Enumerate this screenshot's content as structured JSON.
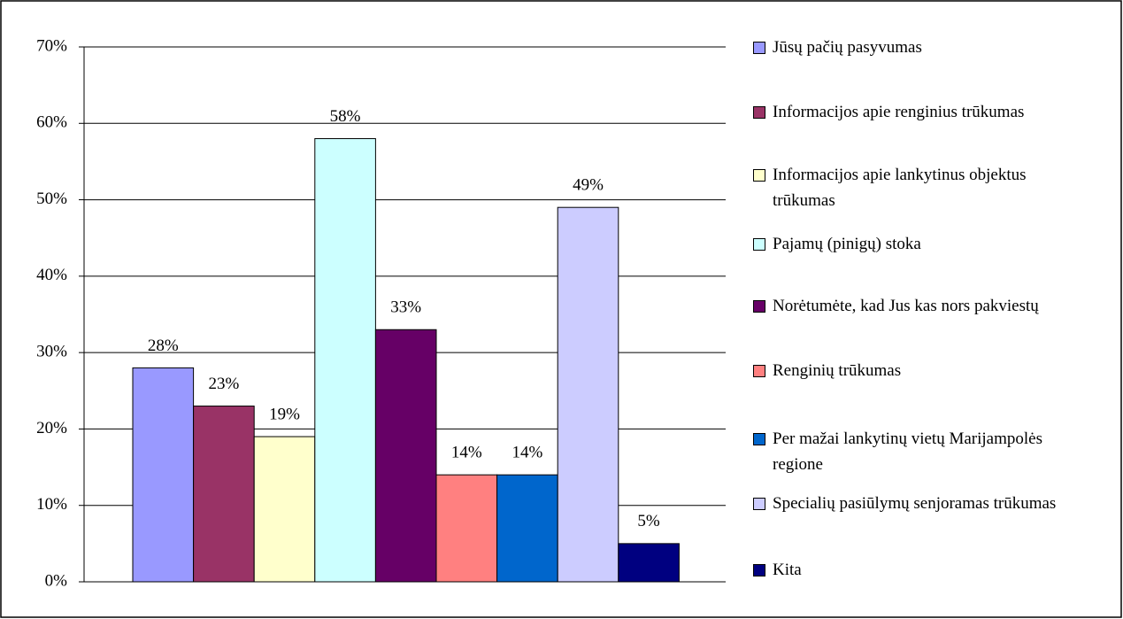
{
  "chart_data": {
    "type": "bar",
    "categories": [
      null
    ],
    "series": [
      {
        "name": "Jūsų pačių pasyvumas",
        "color": "#9999ff",
        "values": [
          28
        ],
        "value_labels": [
          "28%"
        ]
      },
      {
        "name": "Informacijos apie renginius trūkumas",
        "color": "#993366",
        "values": [
          23
        ],
        "value_labels": [
          "23%"
        ]
      },
      {
        "name": "Informacijos apie lankytinus objektus trūkumas",
        "color": "#ffffcc",
        "values": [
          19
        ],
        "value_labels": [
          "19%"
        ]
      },
      {
        "name": "Pajamų (pinigų) stoka",
        "color": "#ccffff",
        "values": [
          58
        ],
        "value_labels": [
          "58%"
        ]
      },
      {
        "name": "Norėtumėte, kad Jus kas nors pakviestų",
        "color": "#660066",
        "values": [
          33
        ],
        "value_labels": [
          "33%"
        ]
      },
      {
        "name": "Renginių trūkumas",
        "color": "#ff8080",
        "values": [
          14
        ],
        "value_labels": [
          "14%"
        ]
      },
      {
        "name": "Per mažai lankytinų vietų Marijampolės regione",
        "color": "#0066cc",
        "values": [
          14
        ],
        "value_labels": [
          "14%"
        ]
      },
      {
        "name": "Specialių pasiūlymų senjoramas trūkumas",
        "color": "#ccccff",
        "values": [
          49
        ],
        "value_labels": [
          "49%"
        ]
      },
      {
        "name": "Kita",
        "color": "#000080",
        "values": [
          5
        ],
        "value_labels": [
          "5%"
        ]
      }
    ],
    "ylim": [
      0,
      70
    ],
    "yticks": [
      {
        "value": 0,
        "label": "0%"
      },
      {
        "value": 10,
        "label": "10%"
      },
      {
        "value": 20,
        "label": "20%"
      },
      {
        "value": 30,
        "label": "30%"
      },
      {
        "value": 40,
        "label": "40%"
      },
      {
        "value": 50,
        "label": "50%"
      },
      {
        "value": 60,
        "label": "60%"
      },
      {
        "value": 70,
        "label": "70%"
      }
    ],
    "grid": true,
    "legend": "right"
  }
}
